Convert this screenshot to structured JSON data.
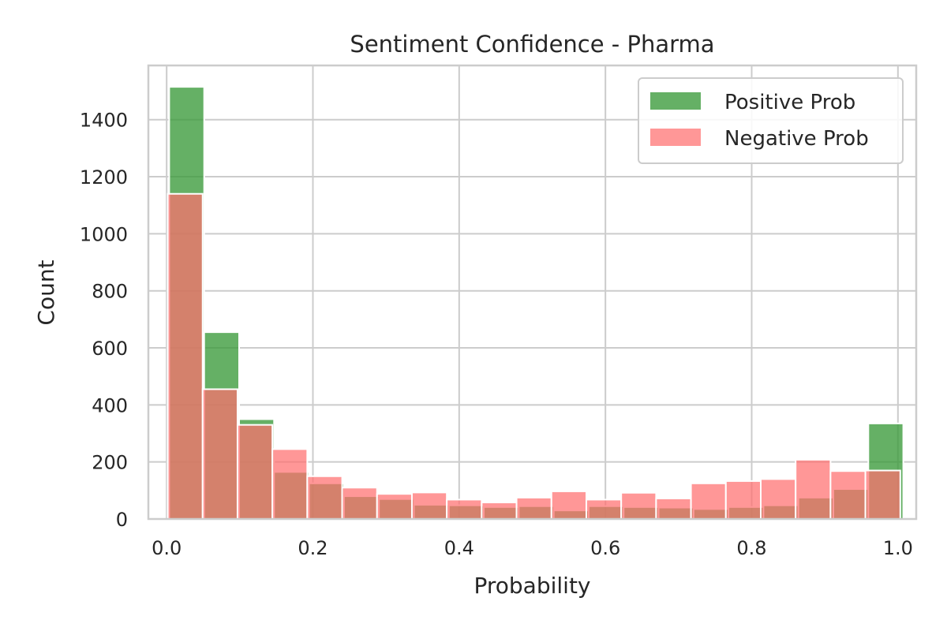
{
  "chart_data": {
    "type": "bar",
    "subtype": "overlaid-histogram",
    "title": "Sentiment Confidence - Pharma",
    "xlabel": "Probability",
    "ylabel": "Count",
    "xlim": [
      -0.025,
      1.025
    ],
    "ylim": [
      0,
      1590
    ],
    "x_ticks": [
      0.0,
      0.2,
      0.4,
      0.6,
      0.8,
      1.0
    ],
    "x_tick_labels": [
      "0.0",
      "0.2",
      "0.4",
      "0.6",
      "0.8",
      "1.0"
    ],
    "y_ticks": [
      0,
      200,
      400,
      600,
      800,
      1000,
      1200,
      1400
    ],
    "y_tick_labels": [
      "0",
      "200",
      "400",
      "600",
      "800",
      "1000",
      "1200",
      "1400"
    ],
    "grid": true,
    "legend_position": "top-right",
    "series": [
      {
        "name": "Positive Prob",
        "color": "#3a9a3a",
        "opacity": 0.78,
        "bins": [
          {
            "x0": 0.0035,
            "x1": 0.0513,
            "value": 1515
          },
          {
            "x0": 0.0513,
            "x1": 0.0991,
            "value": 655
          },
          {
            "x0": 0.0991,
            "x1": 0.1469,
            "value": 350
          },
          {
            "x0": 0.1469,
            "x1": 0.1947,
            "value": 165
          },
          {
            "x0": 0.1947,
            "x1": 0.2425,
            "value": 125
          },
          {
            "x0": 0.2425,
            "x1": 0.2903,
            "value": 80
          },
          {
            "x0": 0.2903,
            "x1": 0.3381,
            "value": 70
          },
          {
            "x0": 0.3381,
            "x1": 0.3859,
            "value": 50
          },
          {
            "x0": 0.3859,
            "x1": 0.4337,
            "value": 48
          },
          {
            "x0": 0.4337,
            "x1": 0.4815,
            "value": 42
          },
          {
            "x0": 0.4815,
            "x1": 0.5293,
            "value": 45
          },
          {
            "x0": 0.5293,
            "x1": 0.5771,
            "value": 30
          },
          {
            "x0": 0.5771,
            "x1": 0.6249,
            "value": 45
          },
          {
            "x0": 0.6249,
            "x1": 0.6727,
            "value": 42
          },
          {
            "x0": 0.6727,
            "x1": 0.7205,
            "value": 40
          },
          {
            "x0": 0.7205,
            "x1": 0.7683,
            "value": 35
          },
          {
            "x0": 0.7683,
            "x1": 0.8161,
            "value": 42
          },
          {
            "x0": 0.8161,
            "x1": 0.8639,
            "value": 48
          },
          {
            "x0": 0.8639,
            "x1": 0.9117,
            "value": 75
          },
          {
            "x0": 0.9117,
            "x1": 0.9595,
            "value": 105
          },
          {
            "x0": 0.9595,
            "x1": 1.0073,
            "value": 335
          }
        ]
      },
      {
        "name": "Negative Prob",
        "color": "#ff6f6f",
        "opacity": 0.72,
        "bins": [
          {
            "x0": 0.0015,
            "x1": 0.0492,
            "value": 1140
          },
          {
            "x0": 0.0492,
            "x1": 0.0969,
            "value": 455
          },
          {
            "x0": 0.0969,
            "x1": 0.1446,
            "value": 330
          },
          {
            "x0": 0.1446,
            "x1": 0.1923,
            "value": 245
          },
          {
            "x0": 0.1923,
            "x1": 0.24,
            "value": 150
          },
          {
            "x0": 0.24,
            "x1": 0.2877,
            "value": 110
          },
          {
            "x0": 0.2877,
            "x1": 0.3354,
            "value": 88
          },
          {
            "x0": 0.3354,
            "x1": 0.3831,
            "value": 93
          },
          {
            "x0": 0.3831,
            "x1": 0.4308,
            "value": 68
          },
          {
            "x0": 0.4308,
            "x1": 0.4785,
            "value": 58
          },
          {
            "x0": 0.4785,
            "x1": 0.5262,
            "value": 75
          },
          {
            "x0": 0.5262,
            "x1": 0.5739,
            "value": 97
          },
          {
            "x0": 0.5739,
            "x1": 0.6216,
            "value": 68
          },
          {
            "x0": 0.6216,
            "x1": 0.6693,
            "value": 92
          },
          {
            "x0": 0.6693,
            "x1": 0.717,
            "value": 72
          },
          {
            "x0": 0.717,
            "x1": 0.7647,
            "value": 125
          },
          {
            "x0": 0.7647,
            "x1": 0.8124,
            "value": 133
          },
          {
            "x0": 0.8124,
            "x1": 0.8601,
            "value": 140
          },
          {
            "x0": 0.8601,
            "x1": 0.9078,
            "value": 208
          },
          {
            "x0": 0.9078,
            "x1": 0.9555,
            "value": 168
          },
          {
            "x0": 0.9555,
            "x1": 1.0032,
            "value": 170
          }
        ]
      }
    ]
  }
}
